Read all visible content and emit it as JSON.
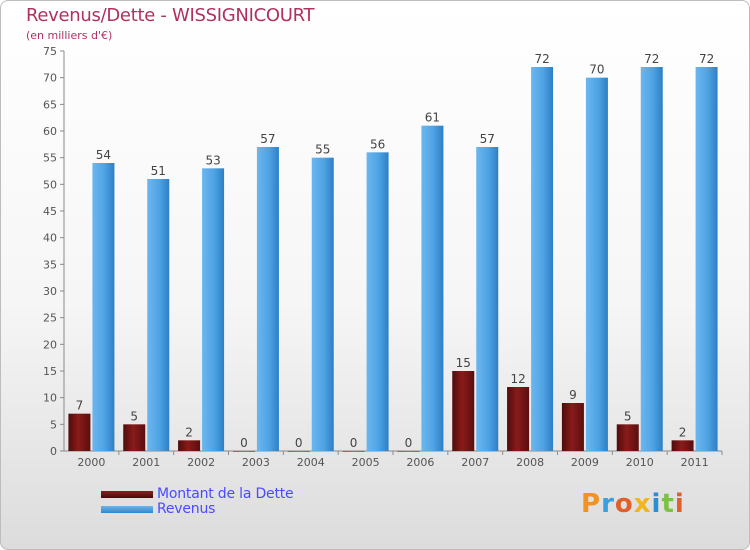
{
  "title": "Revenus/Dette - WISSIGNICOURT",
  "subtitle": "(en milliers d'€)",
  "logo_text": "Proxiti",
  "colors": {
    "title": "#b03060",
    "legend_text": "#4a4aff",
    "debt": "#7a1414",
    "revenue": "#4a9fe0"
  },
  "chart_data": {
    "type": "bar",
    "categories": [
      "2000",
      "2001",
      "2002",
      "2003",
      "2004",
      "2005",
      "2006",
      "2007",
      "2008",
      "2009",
      "2010",
      "2011"
    ],
    "series": [
      {
        "name": "Montant de la Dette",
        "values": [
          7,
          5,
          2,
          0,
          0,
          0,
          0,
          15,
          12,
          9,
          5,
          2
        ]
      },
      {
        "name": "Revenus",
        "values": [
          54,
          51,
          53,
          57,
          55,
          56,
          61,
          57,
          72,
          70,
          72,
          72
        ]
      }
    ],
    "ylim": [
      0,
      75
    ],
    "yticks": [
      0,
      5,
      10,
      15,
      20,
      25,
      30,
      35,
      40,
      45,
      50,
      55,
      60,
      65,
      70,
      75
    ],
    "grid": false,
    "legend_position": "bottom-left"
  }
}
